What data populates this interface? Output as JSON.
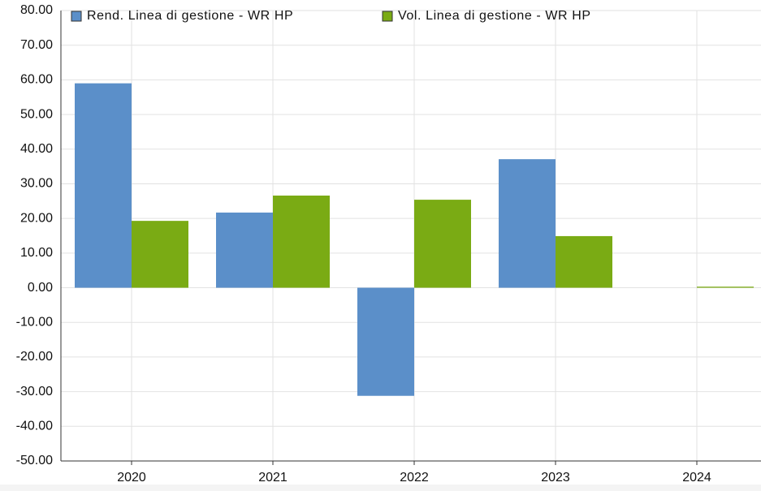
{
  "chart_data": {
    "type": "bar",
    "categories": [
      "2020",
      "2021",
      "2022",
      "2023",
      "2024"
    ],
    "series": [
      {
        "name": "Rend. Linea di gestione - WR HP",
        "color": "#5b8fc9",
        "values": [
          59.0,
          21.7,
          -31.2,
          37.1,
          null
        ]
      },
      {
        "name": "Vol. Linea di gestione - WR HP",
        "color": "#7aab14",
        "values": [
          19.3,
          26.6,
          25.4,
          14.9,
          0.3
        ]
      }
    ],
    "ylim": [
      -50,
      80
    ],
    "yticks": [
      {
        "value": -50,
        "label": "-50.00"
      },
      {
        "value": -40,
        "label": "-40.00"
      },
      {
        "value": -30,
        "label": "-30.00"
      },
      {
        "value": -20,
        "label": "-20.00"
      },
      {
        "value": -10,
        "label": "-10.00"
      },
      {
        "value": 0,
        "label": "0.00"
      },
      {
        "value": 10,
        "label": "10.00"
      },
      {
        "value": 20,
        "label": "20.00"
      },
      {
        "value": 30,
        "label": "30.00"
      },
      {
        "value": 40,
        "label": "40.00"
      },
      {
        "value": 50,
        "label": "50.00"
      },
      {
        "value": 60,
        "label": "60.00"
      },
      {
        "value": 70,
        "label": "70.00"
      },
      {
        "value": 80,
        "label": "80.00"
      }
    ],
    "grid": true,
    "legend": "top"
  }
}
